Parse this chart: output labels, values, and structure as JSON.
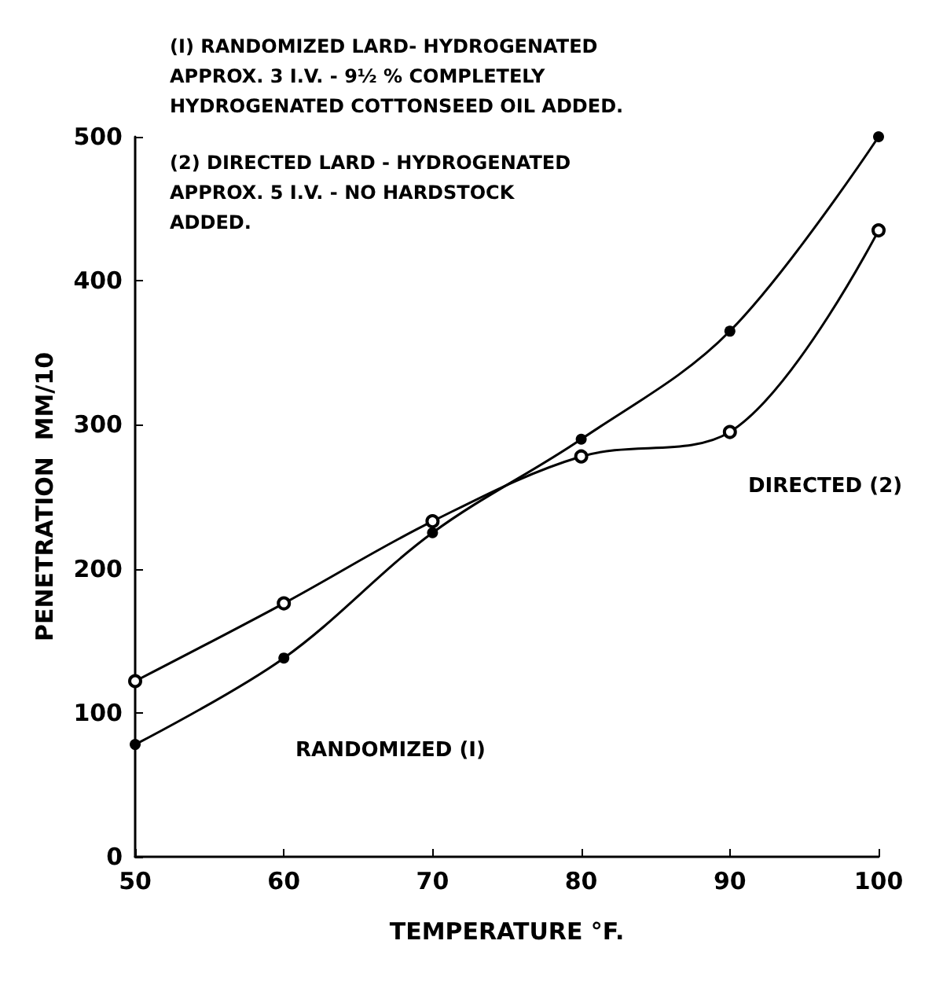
{
  "chart_data": {
    "type": "line",
    "xlabel": "TEMPERATURE °F.",
    "ylabel": "PENETRATION  MM/10",
    "x": [
      50,
      60,
      70,
      80,
      90,
      100
    ],
    "series": [
      {
        "color": "#000000",
        "values": [
          78,
          138,
          225,
          290,
          365,
          500
        ]
      },
      {
        "color": "#000000",
        "values": [
          122,
          176,
          233,
          278,
          295,
          435
        ]
      }
    ],
    "annotations": [
      "(I) RANDOMIZED LARD- HYDROGENATED\nAPPROX. 3 I.V. - 9½ % COMPLETELY\nHYDROGENATED COTTONSEED OIL ADDED.",
      "(2) DIRECTED LARD - HYDROGENATED\nAPPROX. 5 I.V. - NO HARDSTOCK\nADDED.",
      "RANDOMIZED (I)",
      "DIRECTED (2)"
    ],
    "xlim": [
      50,
      100
    ],
    "xticks": [
      50,
      60,
      70,
      80,
      90,
      100
    ],
    "ylim": [
      0,
      500
    ],
    "yticks": [
      0,
      100,
      200,
      300,
      400,
      500
    ],
    "grid": false,
    "marker": "circle",
    "line_style": "solid"
  }
}
